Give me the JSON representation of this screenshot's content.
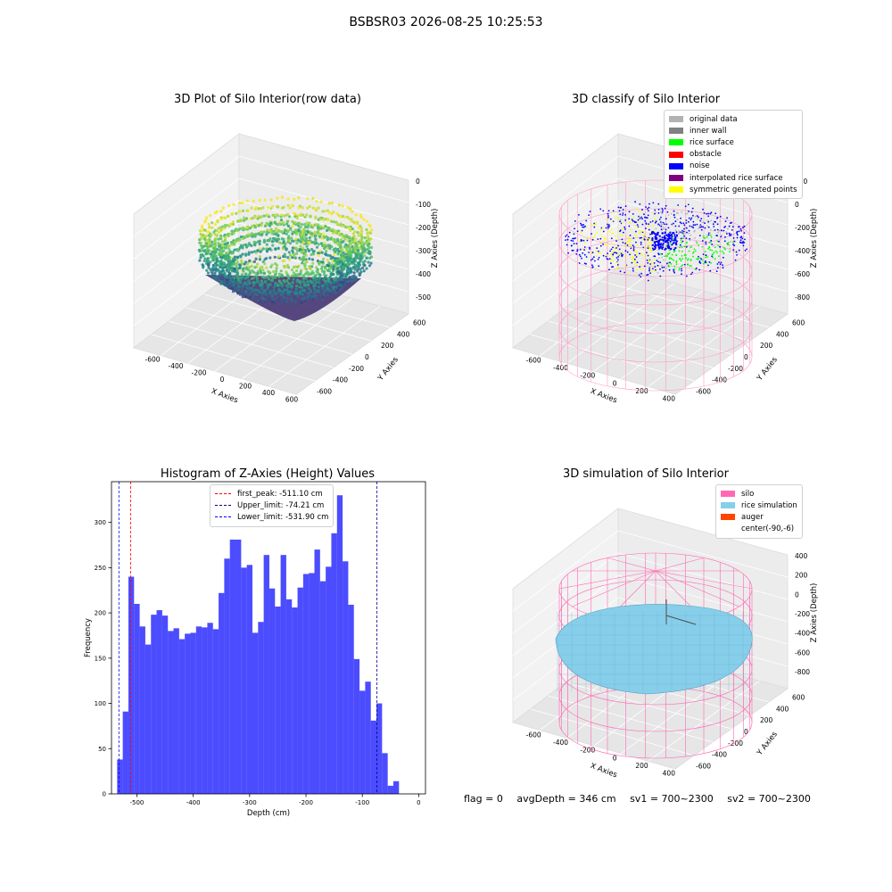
{
  "suptitle": "BSBSR03 2026-08-25 10:25:53",
  "panels": {
    "raw": {
      "title": "3D Plot of Silo Interior(row data)",
      "xlabel": "X Axies",
      "ylabel": "Y Axies",
      "zlabel": "Z Axies (Depth)",
      "x_ticks": [
        "-600",
        "-400",
        "-200",
        "0",
        "200",
        "400",
        "600"
      ],
      "y_ticks": [
        "600",
        "400",
        "200",
        "0",
        "-200",
        "-400",
        "-600"
      ],
      "z_ticks": [
        "0",
        "-100",
        "-200",
        "-300",
        "-400",
        "-500"
      ]
    },
    "classify": {
      "title": "3D classify of Silo Interior",
      "xlabel": "X Axies",
      "ylabel": "Y Axies",
      "zlabel": "Z Axies (Depth)",
      "x_ticks": [
        "-600",
        "-400",
        "-200",
        "0",
        "200",
        "400"
      ],
      "y_ticks": [
        "600",
        "400",
        "200",
        "0",
        "-200",
        "-400",
        "-600"
      ],
      "z_ticks": [
        "200",
        "0",
        "-200",
        "-400",
        "-600",
        "-800"
      ],
      "legend": [
        {
          "label": "original data",
          "color": "#b3b3b3"
        },
        {
          "label": "inner wall",
          "color": "#808080"
        },
        {
          "label": "rice surface",
          "color": "#00ff00"
        },
        {
          "label": "obstacle",
          "color": "#ff0000"
        },
        {
          "label": "noise",
          "color": "#0000ff"
        },
        {
          "label": "interpolated rice surface",
          "color": "#800080"
        },
        {
          "label": "symmetric generated points",
          "color": "#ffff00"
        }
      ]
    },
    "simulation": {
      "title": "3D simulation of Silo Interior",
      "xlabel": "X Axies",
      "ylabel": "Y Axies",
      "zlabel": "Z Axies (Depth)",
      "x_ticks": [
        "-600",
        "-400",
        "-200",
        "0",
        "200",
        "400"
      ],
      "y_ticks": [
        "600",
        "400",
        "200",
        "0",
        "-200",
        "-400",
        "-600"
      ],
      "z_ticks": [
        "400",
        "200",
        "0",
        "-200",
        "-400",
        "-600",
        "-800"
      ],
      "legend": [
        {
          "label": "silo",
          "color": "#ff69b4"
        },
        {
          "label": "rice simulation",
          "color": "#87ceeb"
        },
        {
          "label": "auger",
          "color": "#ff4500"
        },
        {
          "label": "center(-90,-6)",
          "color": "#ffffff"
        }
      ]
    }
  },
  "status": {
    "flag": "flag = 0",
    "avg_depth": "avgDepth = 346 cm",
    "sv1": "sv1 = 700~2300",
    "sv2": "sv2 = 700~2300"
  },
  "chart_data": {
    "type": "bar",
    "title": "Histogram of Z-Axies (Height) Values",
    "xlabel": "Depth (cm)",
    "ylabel": "Frequency",
    "xlim": [
      -545,
      12
    ],
    "ylim": [
      0,
      345
    ],
    "x_ticks": [
      -500,
      -400,
      -300,
      -200,
      -100,
      0
    ],
    "y_ticks": [
      0,
      50,
      100,
      150,
      200,
      250,
      300
    ],
    "bin_width": 10,
    "bin_start": -535,
    "values": [
      38,
      91,
      240,
      210,
      185,
      165,
      198,
      203,
      197,
      180,
      183,
      171,
      177,
      178,
      185,
      184,
      189,
      182,
      222,
      260,
      281,
      281,
      250,
      253,
      178,
      190,
      264,
      227,
      207,
      264,
      215,
      206,
      228,
      243,
      244,
      270,
      235,
      251,
      288,
      330,
      257,
      209,
      149,
      114,
      124,
      81,
      100,
      45,
      9,
      14
    ],
    "bar_color": "#0000ff",
    "lines": [
      {
        "label": "first_peak: -511.10 cm",
        "x": -511.1,
        "color": "#ff0000"
      },
      {
        "label": "Upper_limit: -74.21 cm",
        "x": -74.21,
        "color": "#00008b"
      },
      {
        "label": "Lower_limit: -531.90 cm",
        "x": -531.9,
        "color": "#0000ff"
      }
    ],
    "grid": false,
    "legend_position": "top-center"
  }
}
